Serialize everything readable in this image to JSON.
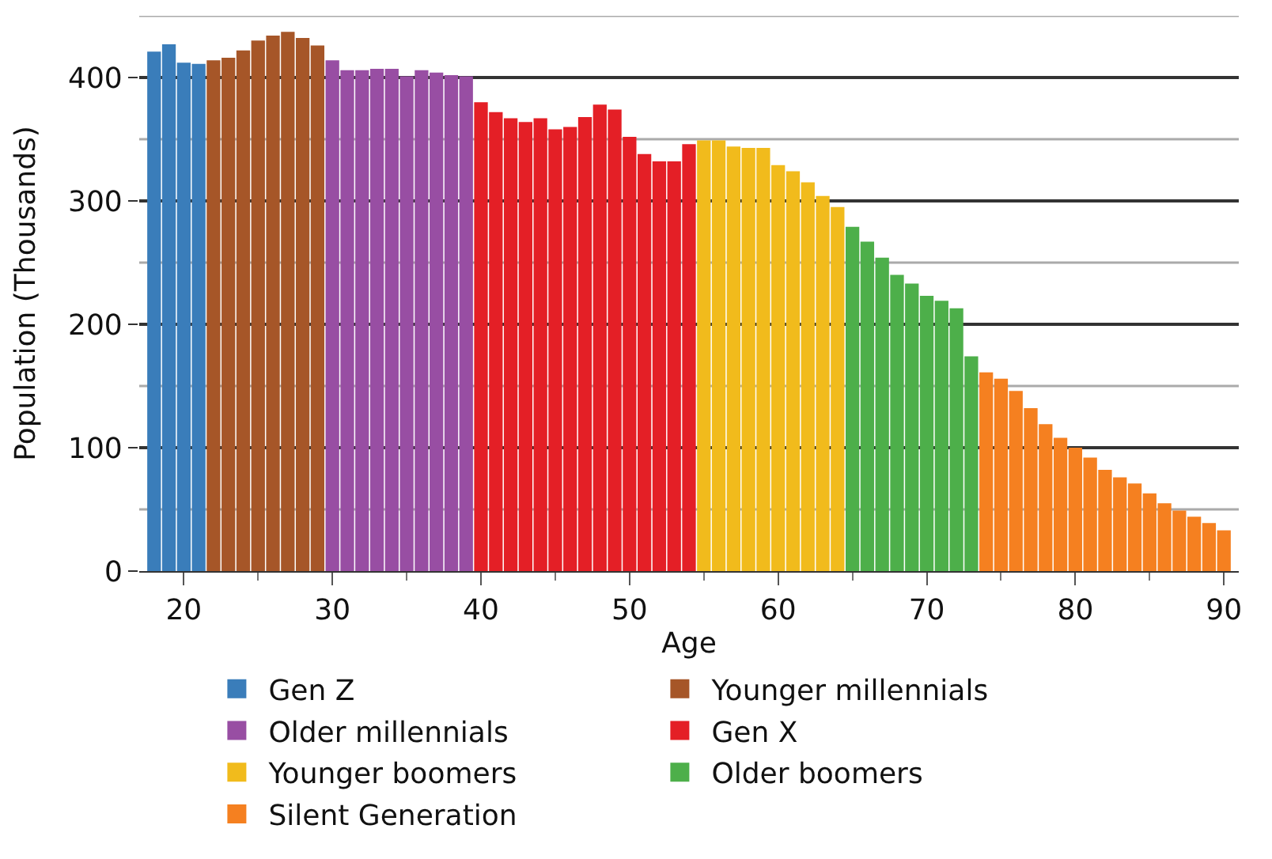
{
  "chart_data": {
    "type": "bar",
    "xlabel": "Age",
    "ylabel": "Population (Thousands)",
    "series": [
      {
        "name": "Gen Z",
        "color": "#3a7dba",
        "x": [
          18,
          19,
          20,
          21
        ],
        "values": [
          421,
          427,
          412,
          411
        ]
      },
      {
        "name": "Younger millennials",
        "color": "#a65628",
        "x": [
          22,
          23,
          24,
          25,
          26,
          27,
          28,
          29
        ],
        "values": [
          414,
          416,
          422,
          430,
          434,
          437,
          432,
          426
        ]
      },
      {
        "name": "Older millennials",
        "color": "#984ea3",
        "x": [
          30,
          31,
          32,
          33,
          34,
          35,
          36,
          37,
          38,
          39
        ],
        "values": [
          414,
          406,
          406,
          407,
          407,
          401,
          406,
          404,
          402,
          401
        ]
      },
      {
        "name": "Gen X",
        "color": "#e41f26",
        "x": [
          40,
          41,
          42,
          43,
          44,
          45,
          46,
          47,
          48,
          49,
          50,
          51,
          52,
          53,
          54
        ],
        "values": [
          380,
          372,
          367,
          364,
          367,
          358,
          360,
          368,
          378,
          374,
          352,
          338,
          332,
          332,
          346
        ]
      },
      {
        "name": "Younger boomers",
        "color": "#f1bb1c",
        "x": [
          55,
          56,
          57,
          58,
          59,
          60,
          61,
          62,
          63,
          64
        ],
        "values": [
          349,
          349,
          344,
          343,
          343,
          329,
          324,
          315,
          304,
          295
        ]
      },
      {
        "name": "Older boomers",
        "color": "#4daf4a",
        "x": [
          65,
          66,
          67,
          68,
          69,
          70,
          71,
          72,
          73
        ],
        "values": [
          279,
          267,
          254,
          240,
          233,
          223,
          219,
          213,
          174
        ]
      },
      {
        "name": "Silent Generation",
        "color": "#f58020",
        "x": [
          74,
          75,
          76,
          77,
          78,
          79,
          80,
          81,
          82,
          83,
          84,
          85,
          86,
          87,
          88,
          89,
          90
        ],
        "values": [
          161,
          156,
          146,
          132,
          119,
          108,
          100,
          92,
          82,
          76,
          71,
          63,
          55,
          49,
          44,
          39,
          33
        ]
      }
    ],
    "xlim": [
      17,
      91
    ],
    "xticks": [
      20,
      {
        "value": 25,
        "label": null
      },
      30,
      {
        "value": 35,
        "label": null
      },
      40,
      {
        "value": 45,
        "label": null
      },
      50,
      {
        "value": 55,
        "label": null
      },
      60,
      {
        "value": 65,
        "label": null
      },
      70,
      {
        "value": 75,
        "label": null
      },
      80,
      {
        "value": 85,
        "label": null
      },
      90
    ],
    "ylim": [
      0,
      450
    ],
    "yticks": [
      0,
      {
        "value": 50,
        "label": null
      },
      100,
      {
        "value": 150,
        "label": null
      },
      200,
      {
        "value": 250,
        "label": null
      },
      300,
      {
        "value": 350,
        "label": null
      },
      400,
      {
        "value": 450,
        "label": null
      }
    ],
    "grid": "y",
    "legend": "bottom"
  }
}
